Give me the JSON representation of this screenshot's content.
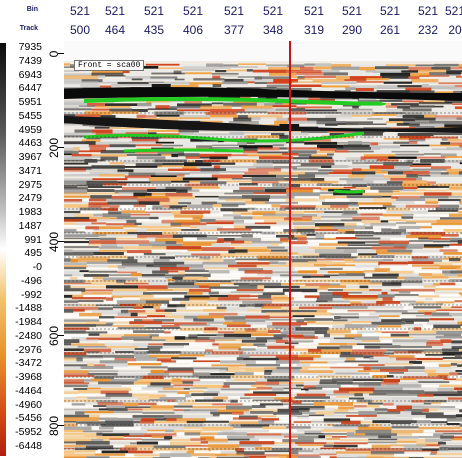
{
  "header": {
    "bin_label": "Bin",
    "track_label": "Track",
    "bins": [
      "521",
      "521",
      "521",
      "521",
      "521",
      "521",
      "521",
      "521",
      "521",
      "521",
      "521"
    ],
    "tracks": [
      "500",
      "464",
      "435",
      "406",
      "377",
      "348",
      "319",
      "290",
      "261",
      "232",
      "20"
    ]
  },
  "colorbar": {
    "values": [
      "7935",
      "7439",
      "6943",
      "6447",
      "5951",
      "5455",
      "4959",
      "4463",
      "3967",
      "3471",
      "2975",
      "2479",
      "1983",
      "1487",
      "991",
      "495",
      "-0",
      "-496",
      "-992",
      "-1488",
      "-1984",
      "-2480",
      "-2976",
      "-3472",
      "-3968",
      "-4464",
      "-4960",
      "-5456",
      "-5952",
      "-6448"
    ]
  },
  "axis": {
    "labels": [
      "0",
      "200",
      "400",
      "600",
      "800"
    ]
  },
  "plot": {
    "front_label": "Front = sca00",
    "cursor_color": "#cc1111",
    "horizon_color": "#22cc22",
    "positive_color": "#d0401a",
    "negative_color": "#111111"
  }
}
